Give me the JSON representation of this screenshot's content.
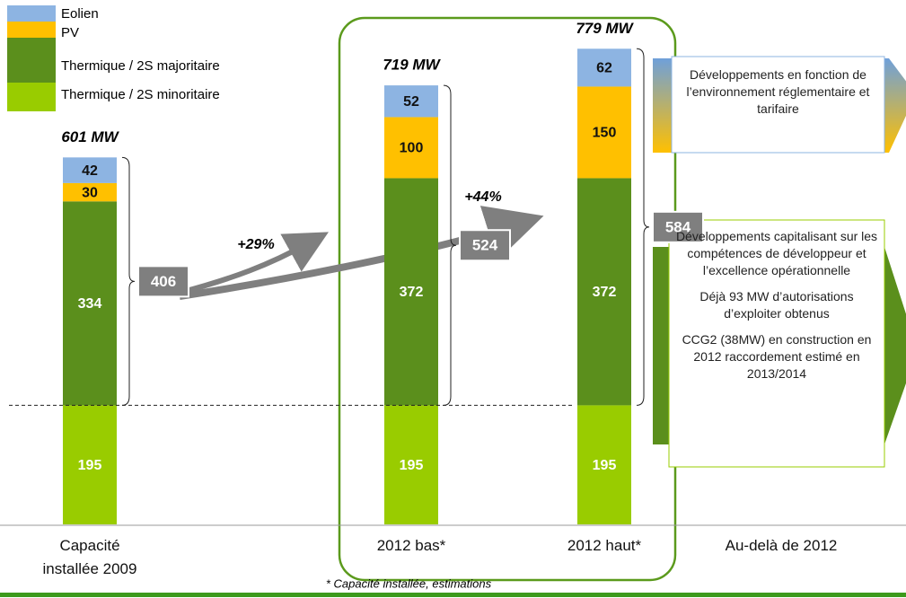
{
  "chart_data": {
    "type": "stacked-bar",
    "categories": [
      "Capacité installée 2009",
      "2012 bas*",
      "2012 haut*",
      "Au-delà de 2012"
    ],
    "series": [
      {
        "name": "Thermique / 2S minoritaire",
        "color": "#99cc00",
        "values": [
          195,
          195,
          195,
          null
        ]
      },
      {
        "name": "Thermique / 2S majoritaire",
        "color": "#5b8f1c",
        "values": [
          334,
          372,
          372,
          null
        ]
      },
      {
        "name": "PV",
        "color": "#ffc000",
        "values": [
          30,
          100,
          150,
          null
        ]
      },
      {
        "name": "Eolien",
        "color": "#8db4e2",
        "values": [
          42,
          52,
          62,
          null
        ]
      }
    ],
    "totals": {
      "values": [
        601,
        719,
        779
      ],
      "value_labels": [
        "601 MW",
        "719 MW",
        "779 MW"
      ]
    },
    "braces": {
      "values": [
        406,
        524,
        584
      ]
    },
    "growth_labels": [
      "+29%",
      "+44%"
    ],
    "boxes": [
      {
        "paragraphs": [
          "Développements en fonction de l’environnement réglementaire et tarifaire"
        ]
      },
      {
        "paragraphs": [
          "Développements capitalisant sur les compétences de développeur et l’excellence opérationnelle",
          "Déjà 93 MW d’autorisations d’exploiter obtenus",
          "CCG2 (38MW) en construction en 2012 raccordement estimé en 2013/2014"
        ]
      }
    ],
    "footnote": "* Capacité installée, estimations"
  }
}
